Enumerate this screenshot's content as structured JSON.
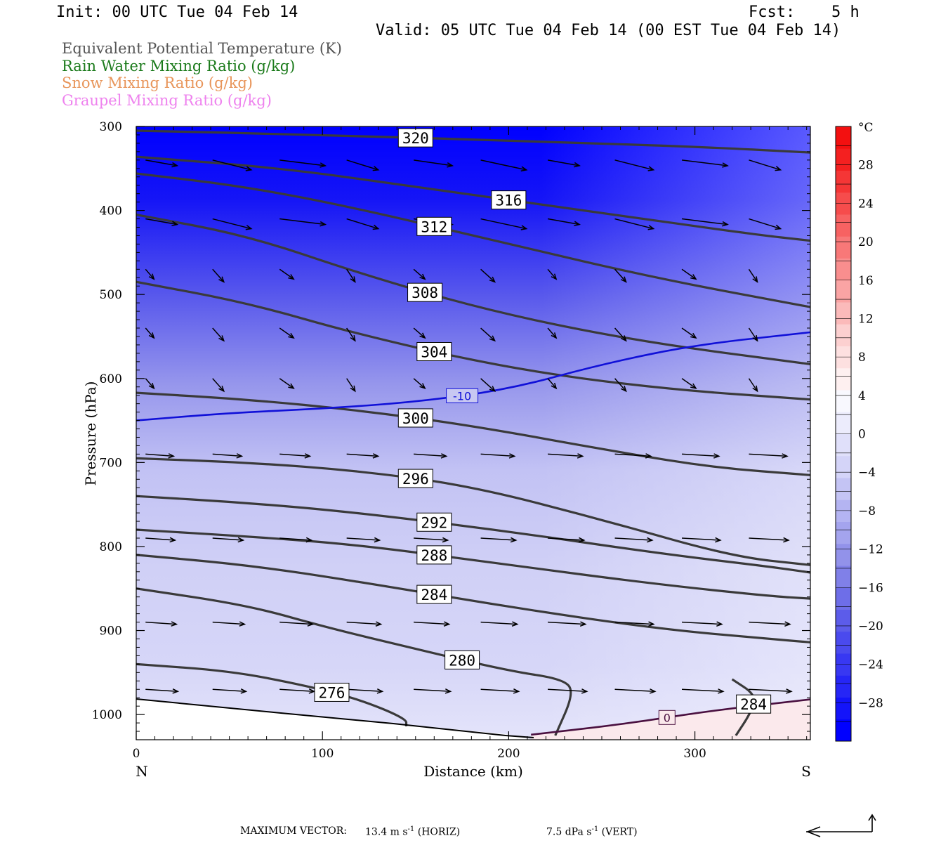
{
  "header": {
    "init": "Init: 00 UTC Tue 04 Feb 14",
    "fcst_label": "Fcst:",
    "fcst_value": "5 h",
    "valid": "Valid: 05 UTC Tue 04 Feb 14 (00 EST Tue 04 Feb 14)"
  },
  "fields": [
    {
      "label": "Equivalent Potential Temperature (K)",
      "color": "#555555"
    },
    {
      "label": "Rain Water Mixing Ratio (g/kg)",
      "color": "#1a7a1a"
    },
    {
      "label": "Snow Mixing Ratio (g/kg)",
      "color": "#e8955a"
    },
    {
      "label": "Graupel Mixing Ratio (g/kg)",
      "color": "#ee82ee"
    }
  ],
  "footer": {
    "max_vector_label": "MAXIMUM VECTOR:",
    "horiz_value": "13.4 m s",
    "horiz_exp": "-1",
    "horiz_tag": "(HORIZ)",
    "vert_value": "7.5 dPa s",
    "vert_exp": "-1",
    "vert_tag": "(VERT)"
  },
  "chart_data": {
    "type": "cross-section",
    "ylabel": "Pressure (hPa)",
    "xlabel": "Distance (km)",
    "x_left_label": "N",
    "x_right_label": "S",
    "xlim": [
      0,
      362
    ],
    "ylim": [
      1030,
      300
    ],
    "x_ticks": [
      0,
      100,
      200,
      300
    ],
    "y_ticks": [
      300,
      400,
      500,
      600,
      700,
      800,
      900,
      1000
    ],
    "colorbar": {
      "unit": "°C",
      "tick_labels": [
        28,
        24,
        20,
        16,
        12,
        8,
        4,
        0,
        -4,
        -8,
        -12,
        -16,
        -20,
        -24,
        -28
      ],
      "range": [
        -32,
        32
      ],
      "colors": [
        "#0000ff",
        "#1414fa",
        "#2626f6",
        "#3838f2",
        "#4a4aee",
        "#5c5cea",
        "#6e6ee8",
        "#8080e8",
        "#9292ea",
        "#a4a4ee",
        "#b4b4f2",
        "#c4c4f4",
        "#d4d4f8",
        "#e0e0fa",
        "#ececfc",
        "#f8f8fe",
        "#fef0f0",
        "#fde0e0",
        "#fcd0d0",
        "#fbbaba",
        "#faa4a4",
        "#f98e8e",
        "#f87878",
        "#f76262",
        "#f64c4c",
        "#f53636",
        "#f42020",
        "#f31010"
      ]
    },
    "theta_e_contours": [
      {
        "label": "320",
        "points": [
          [
            0,
            305
          ],
          [
            100,
            310
          ],
          [
            200,
            317
          ],
          [
            300,
            324
          ],
          [
            362,
            331
          ]
        ]
      },
      {
        "label": "316",
        "points": [
          [
            0,
            336
          ],
          [
            80,
            350
          ],
          [
            150,
            372
          ],
          [
            250,
            403
          ],
          [
            330,
            428
          ],
          [
            362,
            436
          ]
        ]
      },
      {
        "label": "312",
        "points": [
          [
            0,
            356
          ],
          [
            60,
            372
          ],
          [
            120,
            398
          ],
          [
            200,
            440
          ],
          [
            280,
            481
          ],
          [
            362,
            515
          ]
        ]
      },
      {
        "label": "308",
        "points": [
          [
            0,
            405
          ],
          [
            60,
            430
          ],
          [
            120,
            475
          ],
          [
            190,
            520
          ],
          [
            270,
            556
          ],
          [
            362,
            583
          ]
        ]
      },
      {
        "label": "304",
        "points": [
          [
            0,
            485
          ],
          [
            60,
            510
          ],
          [
            120,
            548
          ],
          [
            200,
            588
          ],
          [
            280,
            612
          ],
          [
            362,
            625
          ]
        ]
      },
      {
        "label": "300",
        "points": [
          [
            0,
            617
          ],
          [
            60,
            625
          ],
          [
            120,
            638
          ],
          [
            180,
            656
          ],
          [
            260,
            688
          ],
          [
            310,
            706
          ],
          [
            362,
            715
          ]
        ]
      },
      {
        "label": "296",
        "points": [
          [
            0,
            695
          ],
          [
            60,
            700
          ],
          [
            120,
            710
          ],
          [
            180,
            728
          ],
          [
            250,
            768
          ],
          [
            320,
            812
          ],
          [
            362,
            822
          ]
        ]
      },
      {
        "label": "292",
        "points": [
          [
            0,
            740
          ],
          [
            60,
            748
          ],
          [
            120,
            760
          ],
          [
            200,
            782
          ],
          [
            280,
            808
          ],
          [
            340,
            824
          ],
          [
            362,
            831
          ]
        ]
      },
      {
        "label": "288",
        "points": [
          [
            0,
            780
          ],
          [
            60,
            788
          ],
          [
            120,
            798
          ],
          [
            200,
            822
          ],
          [
            280,
            845
          ],
          [
            340,
            859
          ],
          [
            362,
            862
          ]
        ]
      },
      {
        "label": "284",
        "points": [
          [
            0,
            810
          ],
          [
            60,
            822
          ],
          [
            120,
            842
          ],
          [
            200,
            872
          ],
          [
            280,
            898
          ],
          [
            340,
            910
          ],
          [
            362,
            914
          ]
        ]
      },
      {
        "label": "280",
        "points": [
          [
            0,
            850
          ],
          [
            60,
            870
          ],
          [
            100,
            895
          ],
          [
            150,
            922
          ],
          [
            200,
            948
          ],
          [
            230,
            958
          ],
          [
            235,
            975
          ],
          [
            225,
            1025
          ]
        ]
      },
      {
        "label": "276",
        "points": [
          [
            0,
            940
          ],
          [
            50,
            948
          ],
          [
            90,
            965
          ],
          [
            120,
            982
          ],
          [
            145,
            1005
          ],
          [
            145,
            1014
          ]
        ]
      },
      {
        "label": "284",
        "points": [
          [
            320,
            958
          ],
          [
            333,
            977
          ],
          [
            330,
            998
          ],
          [
            322,
            1025
          ]
        ]
      }
    ],
    "temperature_contours": [
      {
        "label": "-10",
        "points": [
          [
            0,
            650
          ],
          [
            50,
            641
          ],
          [
            100,
            636
          ],
          [
            150,
            628
          ],
          [
            200,
            613
          ],
          [
            250,
            583
          ],
          [
            300,
            560
          ],
          [
            362,
            545
          ]
        ]
      },
      {
        "label": "0",
        "points": [
          [
            212,
            1024
          ],
          [
            260,
            1012
          ],
          [
            310,
            995
          ],
          [
            362,
            982
          ]
        ]
      }
    ],
    "wind_vector_rows_hPa": [
      340,
      410,
      470,
      540,
      600,
      690,
      790,
      890,
      970
    ]
  }
}
